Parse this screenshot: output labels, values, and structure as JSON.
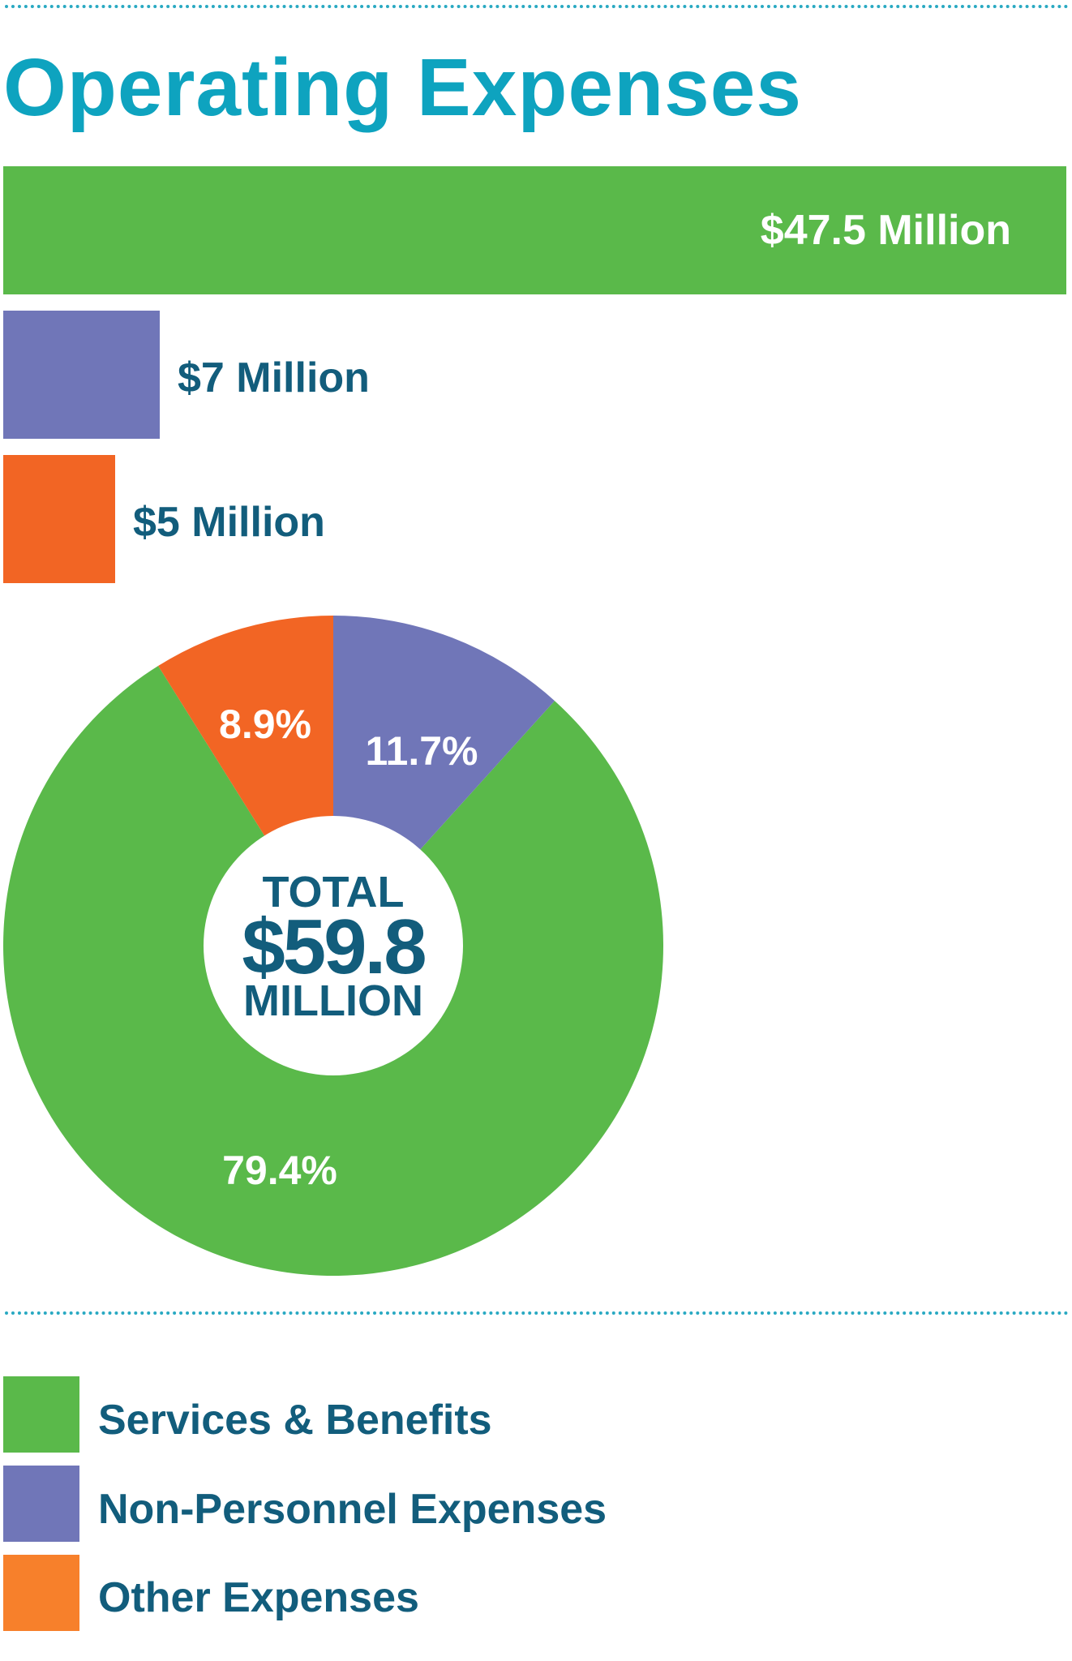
{
  "title": "Operating Expenses",
  "colors": {
    "services": "#5ab94a",
    "nonpersonnel": "#7076b8",
    "other": "#f26524",
    "text_dark": "#125d7c",
    "title": "#0ea3bf",
    "white": "#ffffff"
  },
  "chart_data": [
    {
      "type": "bar",
      "orientation": "horizontal",
      "categories": [
        "Services & Benefits",
        "Non-Personnel Expenses",
        "Other Expenses"
      ],
      "values": [
        47.5,
        7,
        5
      ],
      "value_labels": [
        "$47.5 Million",
        "$7 Million",
        "$5 Million"
      ],
      "unit": "Million $",
      "xlim": [
        0,
        47.5
      ]
    },
    {
      "type": "pie",
      "donut": true,
      "categories": [
        "Services & Benefits",
        "Non-Personnel Expenses",
        "Other Expenses"
      ],
      "values": [
        79.4,
        11.7,
        8.9
      ],
      "value_labels": [
        "79.4%",
        "11.7%",
        "8.9%"
      ],
      "center_text": {
        "line1": "TOTAL",
        "line2": "$59.8",
        "line3": "MILLION"
      }
    }
  ],
  "legend": [
    {
      "label": "Services & Benefits",
      "color": "#5ab94a"
    },
    {
      "label": "Non-Personnel Expenses",
      "color": "#7076b8"
    },
    {
      "label": "Other Expenses",
      "color": "#f7802b"
    }
  ]
}
